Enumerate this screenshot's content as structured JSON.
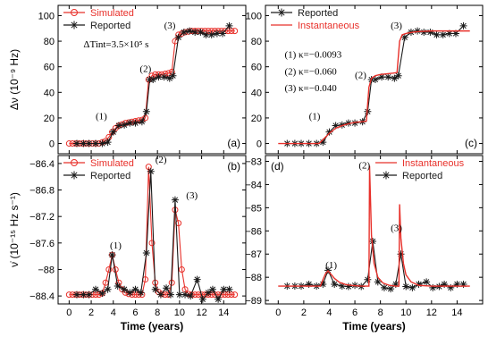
{
  "chart_data": [
    {
      "panel": "a",
      "type": "line",
      "panel_label": "(a)",
      "ylabel": "Δν (10⁻⁹ Hz)",
      "xlabel": "",
      "xlim": [
        -1,
        16
      ],
      "ylim": [
        -8,
        108
      ],
      "xticks": [
        0,
        2,
        4,
        6,
        8,
        10,
        12,
        14
      ],
      "yticks": [
        0,
        20,
        40,
        60,
        80,
        100
      ],
      "annotations": [
        {
          "text": "ΔTint=3.5×10⁵ s",
          "x": 1.3,
          "y": 75
        },
        {
          "text": "(1)",
          "x": 2.4,
          "y": 19
        },
        {
          "text": "(2)",
          "x": 6.4,
          "y": 56
        },
        {
          "text": "(3)",
          "x": 8.6,
          "y": 90
        }
      ],
      "legend": {
        "position": "top-left",
        "entries": [
          "Simulated",
          "Reported"
        ]
      },
      "series": [
        {
          "name": "Simulated",
          "color": "#e8302a",
          "marker": "circle",
          "x": [
            0.0,
            0.3,
            0.6,
            0.9,
            1.2,
            1.5,
            1.8,
            2.1,
            2.4,
            2.7,
            3.0,
            3.3,
            3.6,
            3.9,
            4.2,
            4.5,
            4.8,
            5.1,
            5.4,
            5.7,
            6.0,
            6.3,
            6.6,
            6.9,
            7.2,
            7.5,
            7.8,
            8.1,
            8.4,
            8.7,
            9.0,
            9.3,
            9.6,
            9.9,
            10.2,
            10.5,
            10.8,
            11.1,
            11.4,
            11.7,
            12.0,
            12.3,
            12.6,
            12.9,
            13.2,
            13.5,
            13.8,
            14.1,
            14.4,
            14.7,
            15.0
          ],
          "y": [
            0,
            0,
            0,
            0,
            0,
            0,
            0,
            0,
            0,
            0,
            1,
            2,
            5,
            9,
            12,
            14,
            15,
            16,
            16.5,
            17,
            17.5,
            18,
            18.5,
            20,
            50,
            53,
            54,
            54,
            54,
            54.5,
            55,
            56,
            80,
            85,
            86,
            87,
            87.5,
            88,
            88,
            88,
            88,
            88,
            88,
            88,
            88,
            88,
            88,
            88,
            88,
            88,
            88
          ]
        },
        {
          "name": "Reported",
          "color": "#1a1a1a",
          "marker": "star",
          "x": [
            0.7,
            1.3,
            1.8,
            2.4,
            3.0,
            3.5,
            4.0,
            4.5,
            5.0,
            5.5,
            6.0,
            6.6,
            7.0,
            7.3,
            7.6,
            8.1,
            8.6,
            9.1,
            9.4,
            9.9,
            10.4,
            10.9,
            11.4,
            11.9,
            12.4,
            12.9,
            13.4,
            13.9,
            14.5
          ],
          "y": [
            0,
            0,
            0,
            0,
            0,
            1,
            9,
            14,
            14.5,
            16,
            16,
            17,
            25,
            50,
            50,
            52,
            52,
            51,
            53,
            83,
            87,
            88,
            87,
            87,
            85,
            85,
            86,
            86,
            92
          ]
        }
      ]
    },
    {
      "panel": "b",
      "type": "line",
      "panel_label": "(b)",
      "ylabel": "ν̇ (10⁻¹⁵ Hz s⁻¹)",
      "xlabel": "Time (years)",
      "xlim": [
        -1,
        16
      ],
      "ylim": [
        -88.52,
        -86.28
      ],
      "xticks": [
        0,
        2,
        4,
        6,
        8,
        10,
        12,
        14
      ],
      "yticks": [
        -86.4,
        -86.8,
        -87.2,
        -87.6,
        -88.0,
        -88.4
      ],
      "annotations": [
        {
          "text": "(1)",
          "x": 3.7,
          "y": -87.68
        },
        {
          "text": "(2)",
          "x": 7.8,
          "y": -86.39
        },
        {
          "text": "(3)",
          "x": 10.6,
          "y": -86.93
        }
      ],
      "legend": {
        "position": "top-left",
        "entries": [
          "Simulated",
          "Reported"
        ]
      },
      "series": [
        {
          "name": "Simulated",
          "color": "#e8302a",
          "marker": "circle",
          "x": [
            0.0,
            0.3,
            0.6,
            0.9,
            1.2,
            1.5,
            1.8,
            2.1,
            2.4,
            2.7,
            3.0,
            3.3,
            3.6,
            3.9,
            4.2,
            4.5,
            4.8,
            5.1,
            5.4,
            5.7,
            6.0,
            6.3,
            6.6,
            6.9,
            7.2,
            7.5,
            7.8,
            8.1,
            8.4,
            8.7,
            9.0,
            9.3,
            9.6,
            9.9,
            10.2,
            10.5,
            10.8,
            11.1,
            11.4,
            11.7,
            12.0,
            12.3,
            12.6,
            12.9,
            13.2,
            13.5,
            13.8,
            14.1,
            14.4,
            14.7,
            15.0
          ],
          "y": [
            -88.38,
            -88.38,
            -88.38,
            -88.38,
            -88.38,
            -88.38,
            -88.38,
            -88.38,
            -88.38,
            -88.38,
            -88.36,
            -88.2,
            -88.0,
            -87.78,
            -88.0,
            -88.2,
            -88.3,
            -88.35,
            -88.37,
            -88.38,
            -88.38,
            -88.38,
            -88.38,
            -88.15,
            -86.45,
            -87.6,
            -88.2,
            -88.34,
            -88.37,
            -88.38,
            -88.38,
            -88.2,
            -87.1,
            -87.3,
            -88.0,
            -88.3,
            -88.37,
            -88.38,
            -88.38,
            -88.38,
            -88.38,
            -88.38,
            -88.38,
            -88.38,
            -88.38,
            -88.38,
            -88.38,
            -88.38,
            -88.38,
            -88.38,
            -88.38
          ]
        },
        {
          "name": "Reported",
          "color": "#1a1a1a",
          "marker": "star",
          "x": [
            0.7,
            1.3,
            1.8,
            2.4,
            3.0,
            3.5,
            3.9,
            4.4,
            5.0,
            5.5,
            6.0,
            6.5,
            7.0,
            7.4,
            7.8,
            8.3,
            8.8,
            9.2,
            9.6,
            10.0,
            10.5,
            11.0,
            11.6,
            12.1,
            12.6,
            13.0,
            13.5,
            14.0,
            14.5
          ],
          "y": [
            -88.38,
            -88.38,
            -88.38,
            -88.3,
            -88.36,
            -88.3,
            -87.78,
            -88.25,
            -88.3,
            -88.35,
            -88.3,
            -88.35,
            -87.75,
            -86.52,
            -88.3,
            -88.38,
            -88.28,
            -88.38,
            -86.95,
            -88.38,
            -88.38,
            -88.4,
            -88.15,
            -88.45,
            -88.35,
            -88.3,
            -88.45,
            -88.3,
            -88.3
          ]
        }
      ]
    },
    {
      "panel": "c",
      "type": "line",
      "panel_label": "(c)",
      "ylabel": "",
      "xlabel": "",
      "xlim": [
        -1,
        16
      ],
      "ylim": [
        -8,
        108
      ],
      "xticks": [
        0,
        2,
        4,
        6,
        8,
        10,
        12,
        14
      ],
      "yticks": [
        0,
        20,
        40,
        60,
        80,
        100
      ],
      "annotations": [
        {
          "text": "(1) κ=−0.0093",
          "x": 0.5,
          "y": 67
        },
        {
          "text": "(2) κ=−0.060",
          "x": 0.5,
          "y": 54
        },
        {
          "text": "(3) κ=−0.040",
          "x": 0.5,
          "y": 41
        },
        {
          "text": "(1)",
          "x": 2.4,
          "y": 19
        },
        {
          "text": "(2)",
          "x": 6.0,
          "y": 51
        },
        {
          "text": "(3)",
          "x": 8.8,
          "y": 90
        }
      ],
      "legend": {
        "position": "top-left",
        "entries": [
          "Reported",
          "Instantaneous"
        ]
      },
      "series": [
        {
          "name": "Reported",
          "color": "#1a1a1a",
          "marker": "star",
          "x": [
            0.7,
            1.3,
            1.8,
            2.4,
            3.0,
            3.5,
            4.0,
            4.5,
            5.0,
            5.5,
            6.0,
            6.6,
            7.0,
            7.3,
            7.6,
            8.1,
            8.6,
            9.1,
            9.4,
            9.9,
            10.4,
            10.9,
            11.4,
            11.9,
            12.4,
            12.9,
            13.4,
            13.9,
            14.5
          ],
          "y": [
            0,
            0,
            0,
            0,
            0,
            1,
            9,
            14,
            14.5,
            16,
            16,
            17,
            25,
            50,
            50,
            52,
            52,
            51,
            53,
            83,
            87,
            88,
            87,
            87,
            85,
            85,
            86,
            86,
            92
          ]
        },
        {
          "name": "Instantaneous",
          "color": "#e8302a",
          "marker": "none",
          "x": [
            0,
            3.2,
            3.5,
            4.0,
            4.5,
            5.0,
            5.5,
            6.0,
            6.5,
            6.9,
            7.1,
            7.3,
            7.6,
            8.0,
            8.5,
            9.0,
            9.3,
            9.5,
            9.7,
            10.0,
            10.5,
            11.0,
            12.0,
            13.0,
            14.0,
            15.0
          ],
          "y": [
            0,
            0,
            3,
            8,
            12,
            14,
            15.5,
            16.5,
            17,
            17.5,
            44,
            51,
            53,
            54,
            54.5,
            55,
            55.5,
            80,
            85,
            86,
            87,
            87.5,
            88,
            88,
            88,
            88
          ]
        }
      ]
    },
    {
      "panel": "d",
      "type": "line",
      "panel_label": "(d)",
      "ylabel": "",
      "xlabel": "Time (years)",
      "xlim": [
        -1,
        16
      ],
      "ylim": [
        -89.15,
        -82.75
      ],
      "xticks": [
        0,
        2,
        4,
        6,
        8,
        10,
        12,
        14
      ],
      "yticks": [
        -83,
        -84,
        -85,
        -86,
        -87,
        -88,
        -89
      ],
      "annotations": [
        {
          "text": "(1)",
          "x": 3.7,
          "y": -87.6
        },
        {
          "text": "(2)",
          "x": 6.3,
          "y": -83.3
        },
        {
          "text": "(3)",
          "x": 8.8,
          "y": -86.0
        }
      ],
      "legend": {
        "position": "top-right",
        "entries": [
          "Instantaneous",
          "Reported"
        ]
      },
      "series": [
        {
          "name": "Reported",
          "color": "#1a1a1a",
          "marker": "star",
          "x": [
            0.7,
            1.3,
            1.8,
            2.4,
            3.0,
            3.5,
            3.9,
            4.4,
            5.0,
            5.5,
            6.0,
            6.5,
            7.0,
            7.4,
            7.8,
            8.3,
            8.8,
            9.2,
            9.6,
            10.0,
            10.5,
            11.0,
            11.6,
            12.1,
            12.6,
            13.0,
            13.5,
            14.0,
            14.5
          ],
          "y": [
            -88.38,
            -88.38,
            -88.38,
            -88.3,
            -88.38,
            -88.3,
            -87.7,
            -88.3,
            -88.38,
            -88.4,
            -88.35,
            -88.4,
            -88.1,
            -86.45,
            -88.2,
            -88.45,
            -88.5,
            -88.3,
            -87.0,
            -88.4,
            -88.45,
            -88.3,
            -88.2,
            -88.45,
            -88.4,
            -88.3,
            -88.45,
            -88.3,
            -88.3
          ]
        },
        {
          "name": "Instantaneous",
          "color": "#e8302a",
          "marker": "none",
          "x": [
            0,
            3.3,
            3.5,
            3.7,
            3.9,
            4.1,
            4.4,
            4.8,
            5.3,
            5.9,
            6.5,
            6.9,
            7.1,
            7.15,
            7.3,
            7.5,
            7.8,
            8.2,
            8.7,
            9.2,
            9.45,
            9.5,
            9.6,
            9.8,
            10.0,
            10.4,
            11.0,
            12.0,
            13.0,
            14.0,
            15.0
          ],
          "y": [
            -88.38,
            -88.38,
            -88.1,
            -87.85,
            -87.72,
            -87.85,
            -88.05,
            -88.22,
            -88.32,
            -88.36,
            -88.38,
            -88.38,
            -88.38,
            -83.2,
            -86.2,
            -87.4,
            -88.0,
            -88.25,
            -88.35,
            -88.38,
            -88.38,
            -84.85,
            -86.3,
            -87.4,
            -87.9,
            -88.2,
            -88.35,
            -88.38,
            -88.38,
            -88.38,
            -88.38
          ]
        }
      ]
    }
  ]
}
